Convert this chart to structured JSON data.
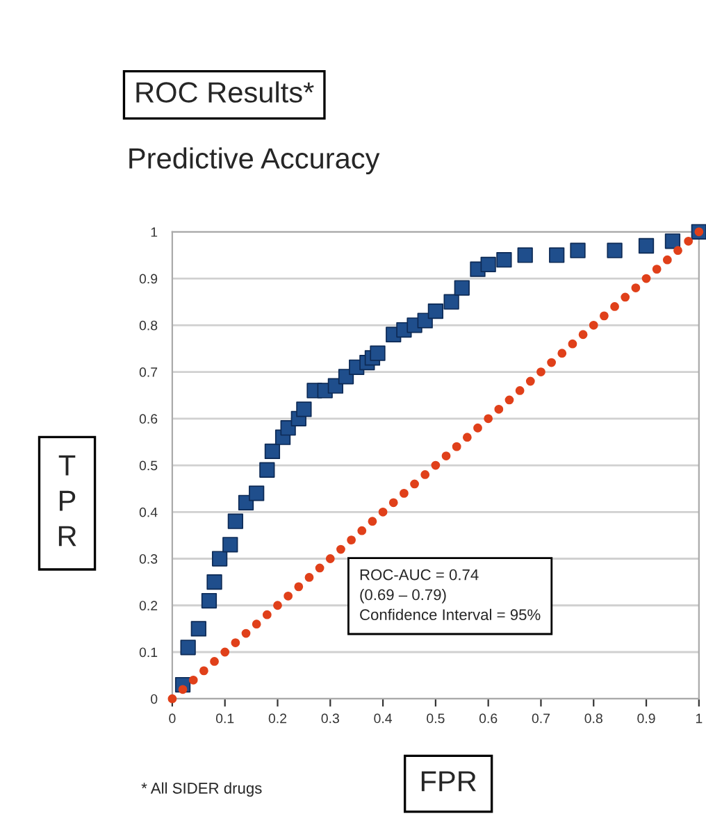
{
  "chart_data": {
    "type": "scatter",
    "title": "ROC Results*",
    "subtitle": "Predictive Accuracy",
    "xlabel": "FPR",
    "ylabel": "T\nP\nR",
    "series": [
      {
        "marker": "square",
        "color": "#1f4e8c",
        "x": [
          0.02,
          0.03,
          0.05,
          0.07,
          0.08,
          0.09,
          0.11,
          0.12,
          0.14,
          0.16,
          0.18,
          0.19,
          0.21,
          0.22,
          0.24,
          0.25,
          0.27,
          0.29,
          0.31,
          0.33,
          0.35,
          0.37,
          0.38,
          0.39,
          0.42,
          0.44,
          0.46,
          0.48,
          0.5,
          0.53,
          0.55,
          0.58,
          0.6,
          0.63,
          0.67,
          0.73,
          0.77,
          0.84,
          0.9,
          0.95,
          1.0
        ],
        "values": [
          0.03,
          0.11,
          0.15,
          0.21,
          0.25,
          0.3,
          0.33,
          0.38,
          0.42,
          0.44,
          0.49,
          0.53,
          0.56,
          0.58,
          0.6,
          0.62,
          0.66,
          0.66,
          0.67,
          0.69,
          0.71,
          0.72,
          0.73,
          0.74,
          0.78,
          0.79,
          0.8,
          0.81,
          0.83,
          0.85,
          0.88,
          0.92,
          0.93,
          0.94,
          0.95,
          0.95,
          0.96,
          0.96,
          0.97,
          0.98,
          1.0
        ]
      },
      {
        "marker": "circle",
        "color": "#e0401a",
        "x": [
          0,
          0.02,
          0.04,
          0.06,
          0.08,
          0.1,
          0.12,
          0.14,
          0.16,
          0.18,
          0.2,
          0.22,
          0.24,
          0.26,
          0.28,
          0.3,
          0.32,
          0.34,
          0.36,
          0.38,
          0.4,
          0.42,
          0.44,
          0.46,
          0.48,
          0.5,
          0.52,
          0.54,
          0.56,
          0.58,
          0.6,
          0.62,
          0.64,
          0.66,
          0.68,
          0.7,
          0.72,
          0.74,
          0.76,
          0.78,
          0.8,
          0.82,
          0.84,
          0.86,
          0.88,
          0.9,
          0.92,
          0.94,
          0.96,
          0.98,
          1.0
        ],
        "values": [
          0,
          0.02,
          0.04,
          0.06,
          0.08,
          0.1,
          0.12,
          0.14,
          0.16,
          0.18,
          0.2,
          0.22,
          0.24,
          0.26,
          0.28,
          0.3,
          0.32,
          0.34,
          0.36,
          0.38,
          0.4,
          0.42,
          0.44,
          0.46,
          0.48,
          0.5,
          0.52,
          0.54,
          0.56,
          0.58,
          0.6,
          0.62,
          0.64,
          0.66,
          0.68,
          0.7,
          0.72,
          0.74,
          0.76,
          0.78,
          0.8,
          0.82,
          0.84,
          0.86,
          0.88,
          0.9,
          0.92,
          0.94,
          0.96,
          0.98,
          1.0
        ]
      }
    ],
    "xlim": [
      0,
      1
    ],
    "ylim": [
      0,
      1
    ],
    "xticks": [
      0,
      0.1,
      0.2,
      0.3,
      0.4,
      0.5,
      0.6,
      0.7,
      0.8,
      0.9,
      1
    ],
    "yticks": [
      0,
      0.1,
      0.2,
      0.3,
      0.4,
      0.5,
      0.6,
      0.7,
      0.8,
      0.9,
      1
    ],
    "grid": "y",
    "legend": false,
    "annotations": [
      "ROC-AUC = 0.74\n(0.69 – 0.79)\nConfidence Interval = 95%",
      "* All SIDER drugs"
    ]
  }
}
